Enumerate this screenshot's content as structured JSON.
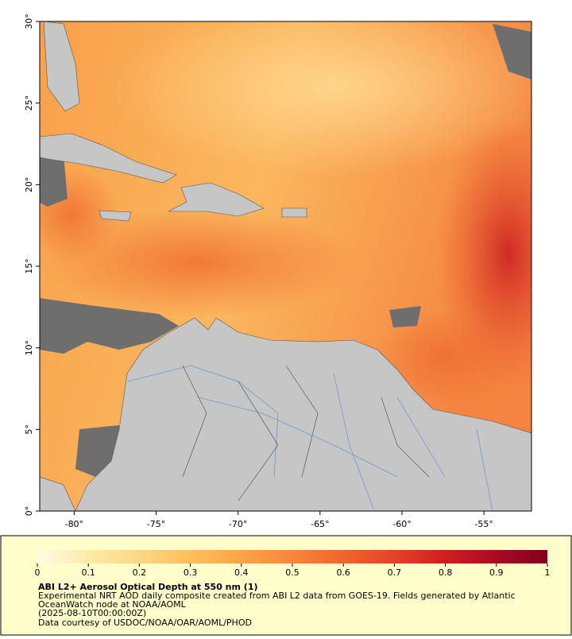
{
  "map": {
    "lat_range": [
      0,
      30
    ],
    "lon_range": [
      -82.1,
      -52.1
    ],
    "lat_ticks": [
      {
        "value": 0,
        "label": "0°"
      },
      {
        "value": 5,
        "label": "5°"
      },
      {
        "value": 10,
        "label": "10°"
      },
      {
        "value": 15,
        "label": "15°"
      },
      {
        "value": 20,
        "label": "20°"
      },
      {
        "value": 25,
        "label": "25°"
      },
      {
        "value": 30,
        "label": "30°"
      }
    ],
    "lon_ticks": [
      {
        "value": -80,
        "label": "-80°"
      },
      {
        "value": -75,
        "label": "-75°"
      },
      {
        "value": -70,
        "label": "-70°"
      },
      {
        "value": -65,
        "label": "-65°"
      },
      {
        "value": -60,
        "label": "-60°"
      },
      {
        "value": -55,
        "label": "-55°"
      }
    ]
  },
  "legend": {
    "colorbar": {
      "ticks": [
        0,
        0.1,
        0.2,
        0.3,
        0.4,
        0.5,
        0.6,
        0.7,
        0.8,
        0.9,
        1
      ],
      "colors": [
        "#fffbe6",
        "#ffeaa8",
        "#ffd784",
        "#ffbf5c",
        "#fca448",
        "#f8863a",
        "#f2652e",
        "#e54226",
        "#d01e20",
        "#aa0a22",
        "#800020"
      ]
    },
    "title": "ABI L2+ Aerosol Optical Depth at 550 nm (1)",
    "lines": [
      "Experimental NRT AOD daily composite created from ABI L2 data from GOES-19. Fields generated by Atlantic",
      "OceanWatch node at NOAA/AOML",
      "(2025-08-10T00:00:00Z)",
      "Data courtesy of USDOC/NOAA/OAR/AOML/PHOD"
    ]
  }
}
